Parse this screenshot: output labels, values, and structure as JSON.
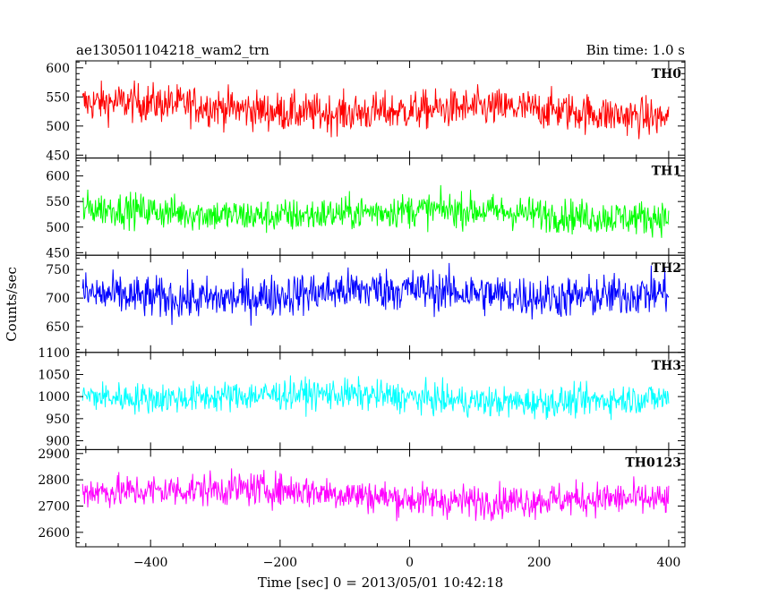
{
  "header": {
    "title": "ae130501104218_wam2_trn",
    "bin_time": "Bin time: 1.0 s"
  },
  "axes": {
    "xlabel": "Time [sec] 0 = 2013/05/01 10:42:18",
    "ylabel": "Counts/sec"
  },
  "chart_data": {
    "type": "line",
    "title": "ae130501104218_wam2_trn",
    "subtitle": "Bin time: 1.0 s",
    "xlabel": "Time [sec] 0 = 2013/05/01 10:42:18",
    "ylabel": "Counts/sec",
    "xlim": [
      -515,
      425
    ],
    "x_range": [
      -505,
      400
    ],
    "bin_time": 1.0,
    "x_ticks": [
      -400,
      -200,
      0,
      200,
      400
    ],
    "x_tick_labels": [
      "−400",
      "−200",
      "0",
      "200",
      "400"
    ],
    "series": [
      {
        "name": "TH0",
        "color": "#ff0000",
        "ylim": [
          445,
          612
        ],
        "yticks": [
          450,
          500,
          550,
          600
        ],
        "mean_start": 535,
        "mean_end": 520,
        "amplitude": 27
      },
      {
        "name": "TH1",
        "color": "#00ff00",
        "ylim": [
          445,
          635
        ],
        "yticks": [
          450,
          500,
          550,
          600
        ],
        "mean_start": 530,
        "mean_end": 525,
        "amplitude": 27
      },
      {
        "name": "TH2",
        "color": "#0000ff",
        "ylim": [
          605,
          775
        ],
        "yticks": [
          650,
          700,
          750
        ],
        "mean_start": 705,
        "mean_end": 710,
        "amplitude": 30
      },
      {
        "name": "TH3",
        "color": "#00ffff",
        "ylim": [
          880,
          1100
        ],
        "yticks": [
          900,
          950,
          1000,
          1050,
          1100
        ],
        "mean_start": 1005,
        "mean_end": 990,
        "amplitude": 28
      },
      {
        "name": "TH0123",
        "color": "#ff00ff",
        "ylim": [
          2545,
          2915
        ],
        "yticks": [
          2600,
          2700,
          2800,
          2900
        ],
        "mean_start": 2770,
        "mean_end": 2710,
        "amplitude": 52
      }
    ]
  }
}
